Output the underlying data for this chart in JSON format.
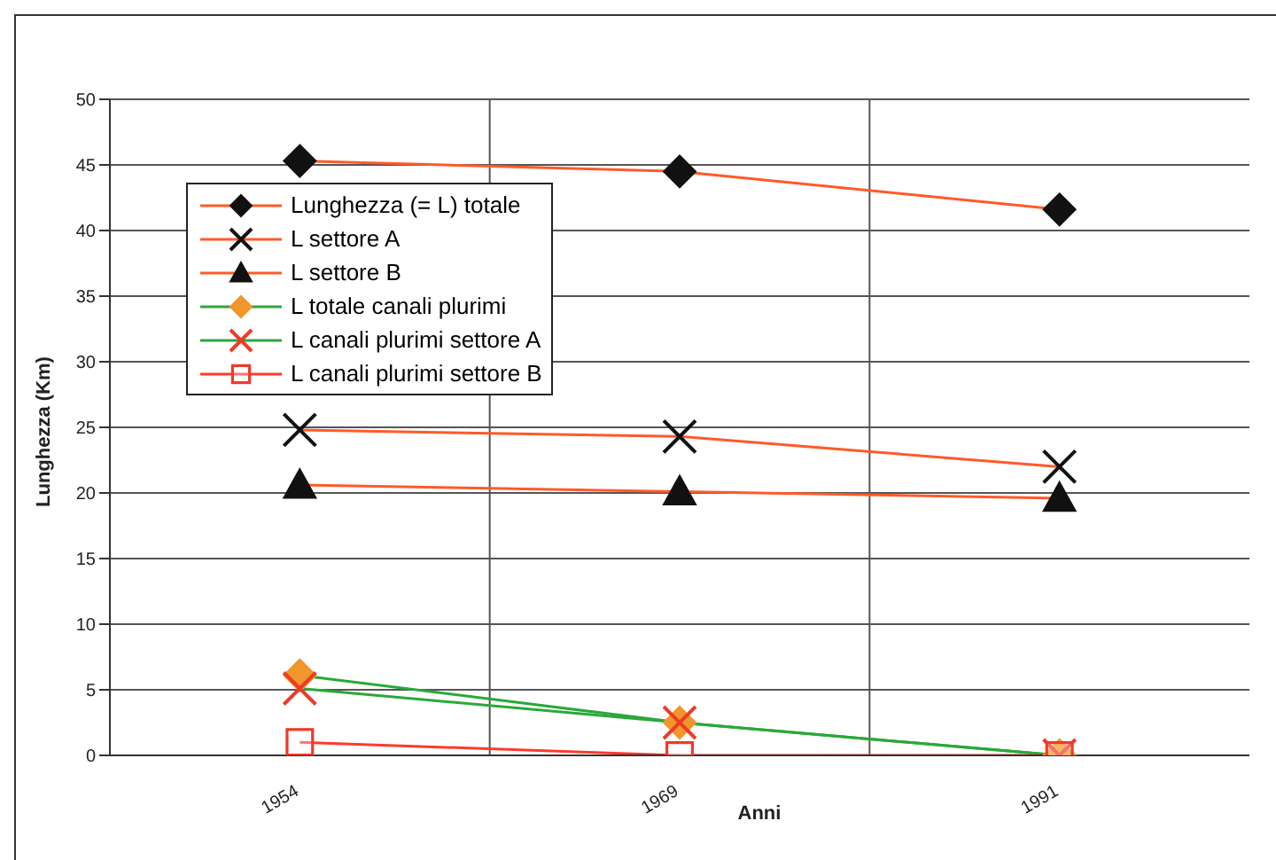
{
  "chart_data": {
    "type": "line",
    "xlabel": "Anni",
    "ylabel": "Lunghezza (Km)",
    "categories": [
      "1954",
      "1969",
      "1991"
    ],
    "ylim": [
      0,
      50
    ],
    "yticks": [
      0,
      5,
      10,
      15,
      20,
      25,
      30,
      35,
      40,
      45,
      50
    ],
    "grid": true,
    "legend": "top left",
    "line_style": "solid",
    "series": [
      {
        "name": "Lunghezza  (= L) totale",
        "color": "#ff5a2a",
        "colors": [
          "#111111",
          "#111111",
          "#111111"
        ],
        "marker": "diamond",
        "values": [
          45.3,
          44.5,
          41.6
        ]
      },
      {
        "name": "L settore A",
        "color": "#ff5a2a",
        "colors": [
          "#111111",
          "#111111",
          "#111111"
        ],
        "marker": "cross",
        "values": [
          24.8,
          24.3,
          22.0
        ]
      },
      {
        "name": "L settore B",
        "color": "#ff5a2a",
        "colors": [
          "#111111",
          "#111111",
          "#111111"
        ],
        "marker": "triangle",
        "values": [
          20.6,
          20.1,
          19.6
        ]
      },
      {
        "name": "L totale canali plurimi",
        "color": "#2aa83a",
        "colors": [
          "#f0962a",
          "#f0962a",
          "#f0962a"
        ],
        "marker": "diamond",
        "values": [
          6.1,
          2.5,
          0
        ]
      },
      {
        "name": "L canali plurimi settore A",
        "color": "#2aa83a",
        "colors": [
          "#ee3a2a",
          "#ee3a2a",
          "#ee3a2a"
        ],
        "marker": "cross",
        "values": [
          5.1,
          2.5,
          0
        ]
      },
      {
        "name": "L canali plurimi settore B",
        "color": "#ff3a2a",
        "colors": [
          "#ee3a2a",
          "#ee3a2a",
          "#ee3a2a"
        ],
        "marker": "square",
        "values": [
          1.0,
          0,
          0
        ]
      }
    ]
  }
}
